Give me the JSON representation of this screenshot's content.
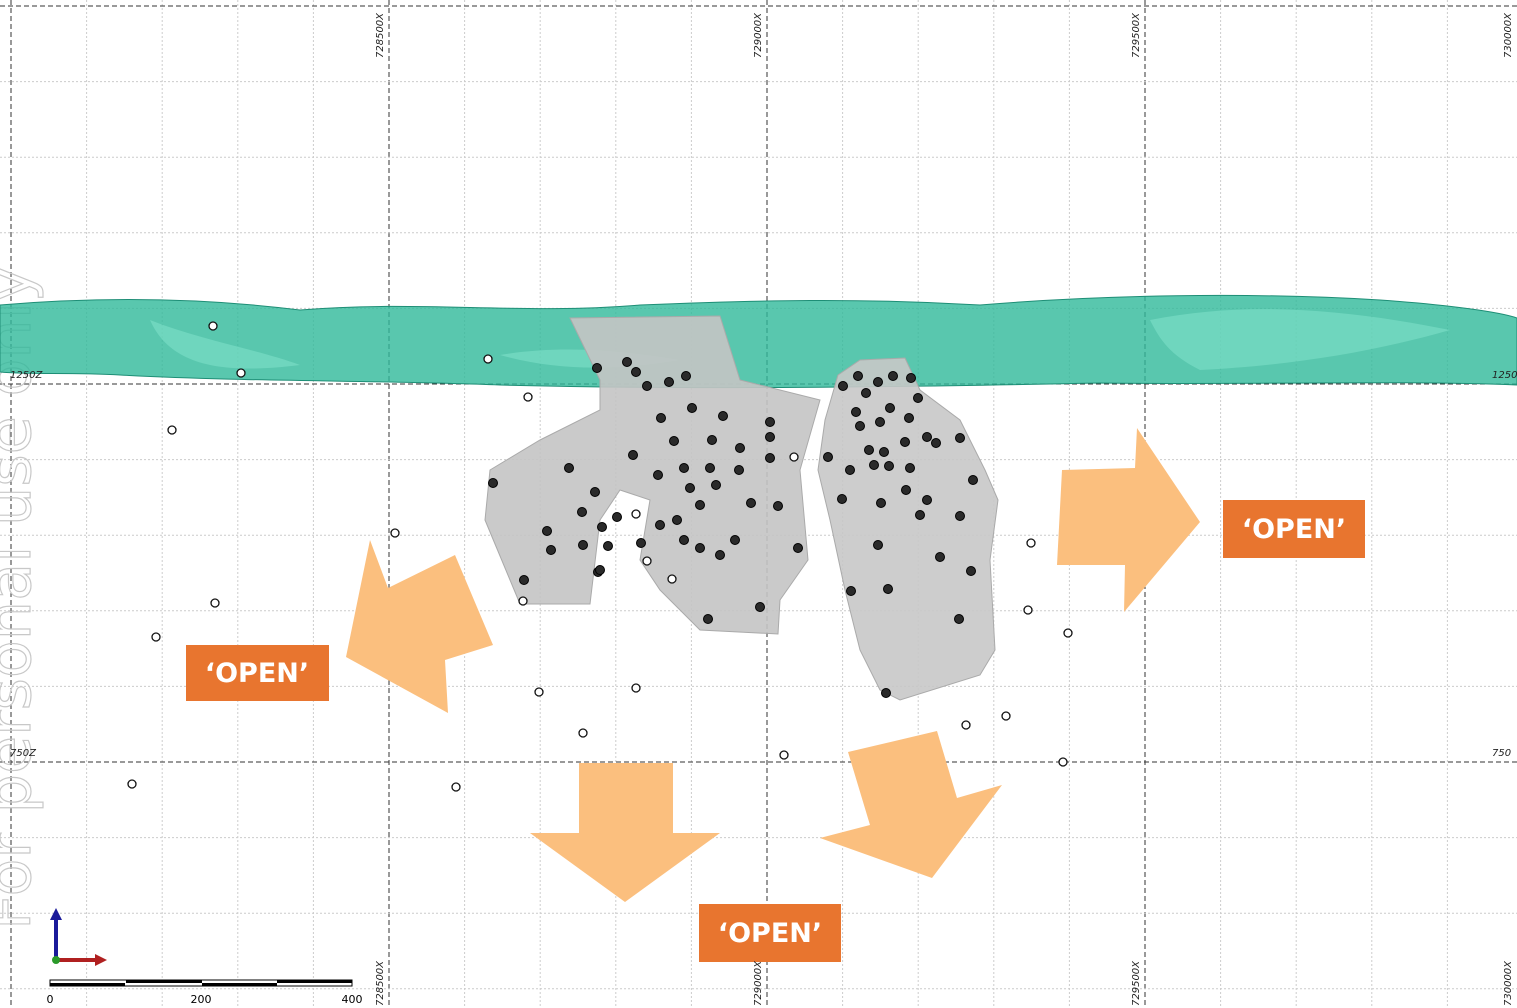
{
  "watermark": "For personal use only",
  "easting_labels_top": [
    "728500X",
    "729000X",
    "729500X",
    "730000X"
  ],
  "easting_labels_bottom": [
    "728500X",
    "729000X",
    "729500X",
    "730000X"
  ],
  "elevation_labels_left": [
    "1250Z",
    "750Z"
  ],
  "elevation_labels_right": [
    "1250",
    "750"
  ],
  "callouts": [
    "‘OPEN’",
    "‘OPEN’",
    "‘OPEN’"
  ],
  "scale_bar": [
    "0",
    "200",
    "400"
  ]
}
